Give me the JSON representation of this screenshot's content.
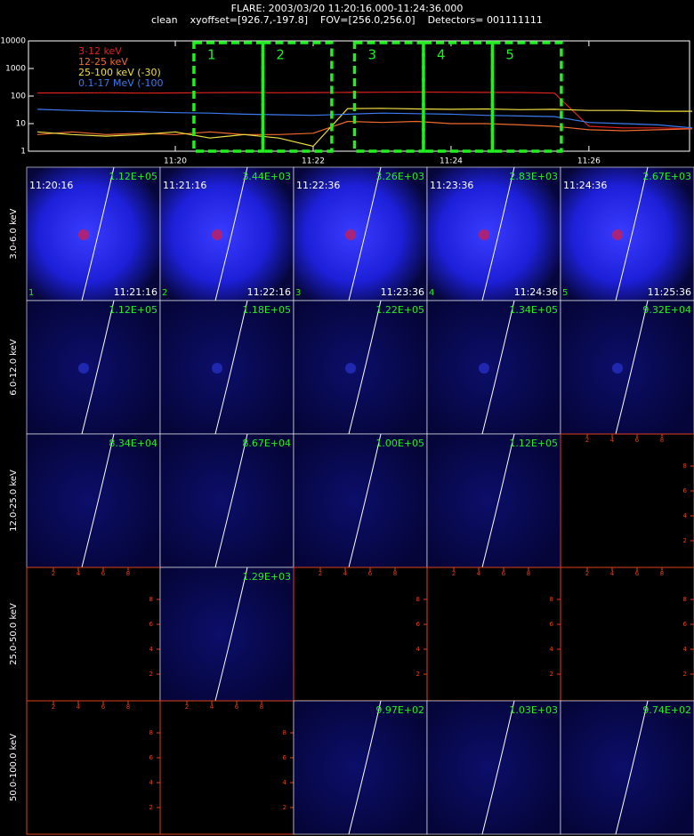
{
  "header": {
    "title": "FLARE: 2003/03/20 11:20:16.000-11:24:36.000",
    "subtitle": "clean    xyoffset=[926.7,-197.8]    FOV=[256.0,256.0]    Detectors= 001111111"
  },
  "chart_data": {
    "type": "line",
    "log_y": true,
    "legend": "upper left",
    "x": [
      18,
      18.5,
      19,
      19.5,
      20,
      20.5,
      21,
      21.5,
      22,
      22.5,
      23,
      23.5,
      24,
      24.5,
      25,
      25.5,
      26,
      26.5,
      27,
      27.5
    ],
    "series": [
      {
        "name": "3-12 keV",
        "color": "#e0201c",
        "values": [
          130,
          130,
          132,
          128,
          130,
          133,
          135,
          132,
          134,
          136,
          138,
          140,
          138,
          136,
          135,
          128,
          8,
          7,
          7,
          6.5
        ]
      },
      {
        "name": "12-25 keV",
        "color": "#f06a30",
        "values": [
          4,
          5,
          4,
          4.5,
          4,
          5,
          4,
          4,
          4.5,
          12,
          11,
          12,
          10,
          10,
          9,
          8,
          6,
          5.5,
          6,
          6.5
        ]
      },
      {
        "name": "25-100 keV (-30)",
        "color": "#f0e040",
        "values": [
          5,
          4,
          3.5,
          4,
          5,
          3,
          4,
          3,
          1.5,
          35,
          36,
          34,
          33,
          34,
          32,
          33,
          30,
          30,
          28,
          28
        ]
      },
      {
        "name": "0.1-17 MeV (-100",
        "color": "#3a7bf0",
        "values": [
          33,
          30,
          28,
          27,
          25,
          24,
          22,
          21,
          20,
          22,
          24,
          23,
          22,
          20,
          19,
          18,
          11,
          10,
          9,
          7
        ]
      }
    ],
    "xlim": [
      17.87,
      27.46
    ],
    "ylim": [
      1,
      10000
    ],
    "xticks": [
      {
        "value": 20,
        "label": "11:20"
      },
      {
        "value": 22,
        "label": "11:22"
      },
      {
        "value": 24,
        "label": "11:24"
      },
      {
        "value": 26,
        "label": "11:26"
      }
    ],
    "yticks": [
      1,
      10,
      100,
      1000,
      10000
    ],
    "intervals": [
      {
        "label": "1",
        "start": 20.27,
        "end": 21.27
      },
      {
        "label": "2",
        "start": 21.27,
        "end": 22.27
      },
      {
        "label": "3",
        "start": 22.6,
        "end": 23.6
      },
      {
        "label": "4",
        "start": 23.6,
        "end": 24.6
      },
      {
        "label": "5",
        "start": 24.6,
        "end": 25.6
      }
    ]
  },
  "image_grid": {
    "row_labels": [
      "3.0-6.0 keV",
      "6.0-12.0 keV",
      "12.0-25.0 keV",
      "25.0-50.0 keV",
      "50.0-100.0 keV"
    ],
    "axis_tick_labels": [
      "2",
      "4",
      "6",
      "8"
    ],
    "rows": [
      [
        {
          "max": "1.12E+05",
          "start": "11:20:16",
          "end": "11:21:16",
          "index": "1"
        },
        {
          "max": "3.44E+03",
          "start": "11:21:16",
          "end": "11:22:16",
          "index": "2"
        },
        {
          "max": "3.26E+03",
          "start": "11:22:36",
          "end": "11:23:36",
          "index": "3"
        },
        {
          "max": "2.83E+03",
          "start": "11:23:36",
          "end": "11:24:36",
          "index": "4"
        },
        {
          "max": "2.67E+03",
          "start": "11:24:36",
          "end": "11:25:36",
          "index": "5"
        }
      ],
      [
        {
          "max": "1.12E+05"
        },
        {
          "max": "1.18E+05"
        },
        {
          "max": "1.22E+05"
        },
        {
          "max": "1.34E+05"
        },
        {
          "max": "9.32E+04"
        }
      ],
      [
        {
          "max": "8.34E+04"
        },
        {
          "max": "8.67E+04"
        },
        {
          "max": "1.00E+05"
        },
        {
          "max": "1.12E+05"
        },
        null
      ],
      [
        null,
        {
          "max": "1.29E+03"
        },
        null,
        null,
        null
      ],
      [
        null,
        null,
        {
          "max": "9.97E+02"
        },
        {
          "max": "1.03E+03"
        },
        {
          "max": "9.74E+02"
        }
      ]
    ]
  }
}
